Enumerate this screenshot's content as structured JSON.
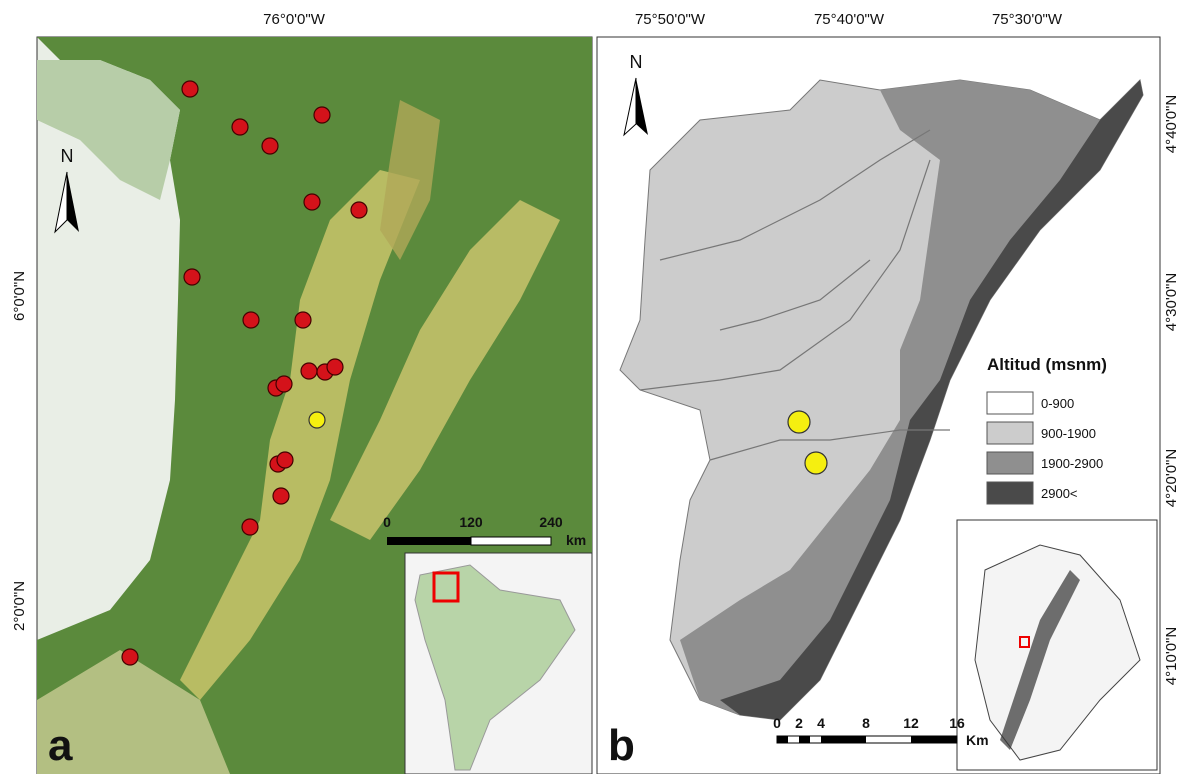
{
  "panel_a": {
    "letter": "a",
    "north": "N",
    "top_labels": [
      "76°0'0\"W"
    ],
    "left_labels": [
      "6°0'0\"N",
      "2°0'0\"N"
    ],
    "scale_labels": [
      "0",
      "120",
      "240",
      "km"
    ]
  },
  "panel_b": {
    "letter": "b",
    "north": "N",
    "top_labels": [
      "75°50'0\"W",
      "75°40'0\"W",
      "75°30'0\"W"
    ],
    "right_labels": [
      "4°40'0\"N",
      "4°30'0\"N",
      "4°20'0\"N",
      "4°10'0\"N"
    ],
    "legend": {
      "title": "Altitud (msnm)",
      "items": [
        {
          "label": "0-900",
          "color": "#ffffff"
        },
        {
          "label": "900-1900",
          "color": "#cccccc"
        },
        {
          "label": "1900-2900",
          "color": "#8f8f8f"
        },
        {
          "label": "2900<",
          "color": "#4a4a4a"
        }
      ]
    },
    "scale_labels": [
      "0",
      "2",
      "4",
      "8",
      "12",
      "16",
      "Km"
    ]
  }
}
